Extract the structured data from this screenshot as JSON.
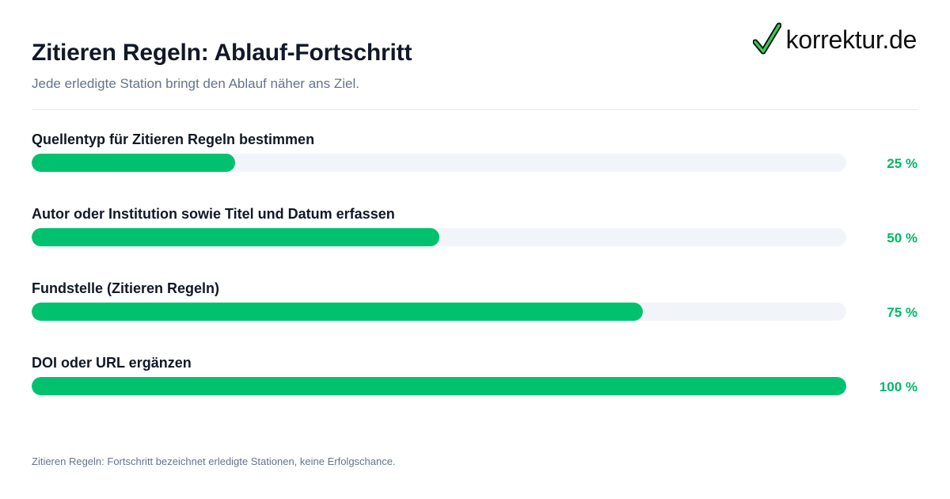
{
  "header": {
    "title": "Zitieren Regeln: Ablauf-Fortschritt",
    "subtitle": "Jede erledigte Station bringt den Ablauf näher ans Ziel."
  },
  "logo": {
    "icon": "checkmark-icon",
    "text": "korrektur.de"
  },
  "colors": {
    "accent": "#00c26e",
    "track": "#f1f5f9",
    "label": "#111827"
  },
  "chart_data": {
    "type": "bar",
    "orientation": "horizontal",
    "categories": [
      "Quellentyp für Zitieren Regeln bestimmen",
      "Autor oder Institution sowie Titel und Datum erfassen",
      "Fundstelle (Zitieren Regeln)",
      "DOI oder URL ergänzen"
    ],
    "values": [
      25,
      50,
      75,
      100
    ],
    "value_labels": [
      "25 %",
      "50 %",
      "75 %",
      "100 %"
    ],
    "xlim": [
      0,
      100
    ],
    "grid": false
  },
  "footnote": "Zitieren Regeln: Fortschritt bezeichnet erledigte Stationen, keine Erfolgschance."
}
